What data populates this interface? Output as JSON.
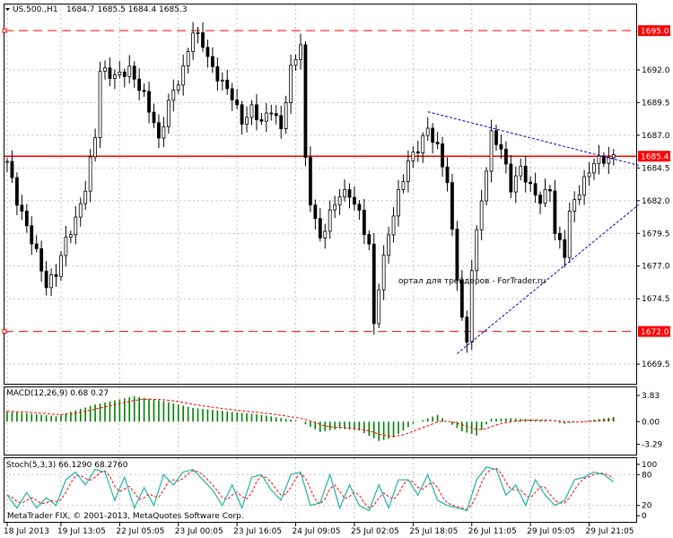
{
  "header": {
    "symbol": "US.500.,H1",
    "ohlc": "1684.7 1685.5 1684.4 1685.3"
  },
  "watermark": "ортал для трейдеров - ForTrader.ru",
  "copyright": "MetaTrader FIX, © 2001-2013, MetaQuotes Software Corp.",
  "colors": {
    "background": "#ffffff",
    "candle": "#000000",
    "grid": "#c0c0c0",
    "red_line": "#ff0000",
    "trend_line": "#0000c8",
    "macd_hist": "#008000",
    "signal": "#ff0000",
    "stoch_main": "#20b2aa",
    "stoch_signal": "#ff0000",
    "price_tag": "#ff0000"
  },
  "chart_data": [
    {
      "type": "candlestick",
      "panel": "main",
      "title": "US.500.,H1",
      "yaxis_ticks": [
        "1695.0",
        "1692.0",
        "1689.5",
        "1687.0",
        "1685.4",
        "1684.5",
        "1682.0",
        "1679.5",
        "1677.0",
        "1674.5",
        "1672.0",
        "1669.5"
      ],
      "ylim": [
        1668.0,
        1697.0
      ],
      "x_tick_labels": [
        "18 Jul 2013",
        "19 Jul 13:05",
        "22 Jul 05:05",
        "23 Jul 00:05",
        "23 Jul 16:05",
        "24 Jul 09:05",
        "25 Jul 02:05",
        "25 Jul 18:05",
        "26 Jul 11:05",
        "29 Jul 05:05",
        "29 Jul 21:05"
      ],
      "horizontal_lines": [
        {
          "price": 1695.0,
          "label": "1695.0",
          "style": "dashed",
          "color": "#ff0000"
        },
        {
          "price": 1685.4,
          "label": "1685.4",
          "style": "solid",
          "color": "#ff0000"
        },
        {
          "price": 1672.0,
          "label": "1672.0",
          "style": "dashed",
          "color": "#ff0000"
        }
      ],
      "trend_lines": [
        {
          "from": [
            86,
            1688.8
          ],
          "to": [
            124,
            1684.7
          ],
          "style": "dotted"
        },
        {
          "from": [
            92,
            1670.3
          ],
          "to": [
            124,
            1681.7
          ],
          "style": "dotted"
        }
      ],
      "close_anchors": [
        [
          0,
          1685.0
        ],
        [
          2,
          1682.0
        ],
        [
          4,
          1680.0
        ],
        [
          6,
          1678.0
        ],
        [
          8,
          1675.5
        ],
        [
          10,
          1676.5
        ],
        [
          12,
          1679.0
        ],
        [
          14,
          1680.5
        ],
        [
          16,
          1683.0
        ],
        [
          18,
          1687.0
        ],
        [
          19,
          1692.0
        ],
        [
          22,
          1691.5
        ],
        [
          25,
          1692.0
        ],
        [
          28,
          1690.0
        ],
        [
          30,
          1688.0
        ],
        [
          31,
          1686.5
        ],
        [
          33,
          1689.5
        ],
        [
          36,
          1692.0
        ],
        [
          38,
          1695.0
        ],
        [
          40,
          1694.0
        ],
        [
          42,
          1692.0
        ],
        [
          44,
          1691.0
        ],
        [
          46,
          1690.0
        ],
        [
          48,
          1688.0
        ],
        [
          50,
          1689.0
        ],
        [
          52,
          1688.0
        ],
        [
          54,
          1689.0
        ],
        [
          56,
          1687.5
        ],
        [
          58,
          1692.0
        ],
        [
          60,
          1694.0
        ],
        [
          61,
          1685.0
        ],
        [
          62,
          1682.0
        ],
        [
          64,
          1679.0
        ],
        [
          66,
          1681.0
        ],
        [
          68,
          1682.5
        ],
        [
          70,
          1682.5
        ],
        [
          72,
          1681.0
        ],
        [
          74,
          1678.5
        ],
        [
          75,
          1672.5
        ],
        [
          76,
          1675.5
        ],
        [
          78,
          1679.5
        ],
        [
          80,
          1682.5
        ],
        [
          82,
          1685.0
        ],
        [
          84,
          1686.0
        ],
        [
          86,
          1687.5
        ],
        [
          88,
          1686.0
        ],
        [
          90,
          1683.5
        ],
        [
          91,
          1679.5
        ],
        [
          93,
          1673.0
        ],
        [
          94,
          1671.0
        ],
        [
          95,
          1677.0
        ],
        [
          97,
          1682.0
        ],
        [
          99,
          1687.0
        ],
        [
          101,
          1686.0
        ],
        [
          103,
          1683.0
        ],
        [
          105,
          1684.5
        ],
        [
          107,
          1683.0
        ],
        [
          109,
          1682.0
        ],
        [
          111,
          1683.0
        ],
        [
          112,
          1679.5
        ],
        [
          114,
          1678.0
        ],
        [
          115,
          1681.0
        ],
        [
          116,
          1682.0
        ],
        [
          118,
          1683.5
        ],
        [
          120,
          1685.0
        ],
        [
          124,
          1685.3
        ]
      ],
      "candle_count": 125
    },
    {
      "type": "histogram",
      "panel": "macd",
      "title": "MACD(12,26,9) 0.68 0.27",
      "yaxis_ticks": [
        "3.83",
        "0.00",
        "-3.29"
      ],
      "ylim": [
        -4.8,
        5.0
      ],
      "series": [
        {
          "name": "MACD",
          "style": "histogram"
        },
        {
          "name": "Signal",
          "style": "dashed"
        }
      ],
      "anchors": [
        [
          0,
          1.5
        ],
        [
          10,
          0.8
        ],
        [
          18,
          2.5
        ],
        [
          26,
          3.7
        ],
        [
          32,
          3.0
        ],
        [
          38,
          2.0
        ],
        [
          45,
          1.5
        ],
        [
          52,
          1.0
        ],
        [
          58,
          0.3
        ],
        [
          60,
          0.0
        ],
        [
          64,
          -1.5
        ],
        [
          68,
          -1.0
        ],
        [
          72,
          -1.3
        ],
        [
          76,
          -2.8
        ],
        [
          79,
          -2.3
        ],
        [
          83,
          -0.3
        ],
        [
          88,
          1.0
        ],
        [
          93,
          -1.4
        ],
        [
          96,
          -2.0
        ],
        [
          99,
          0.4
        ],
        [
          103,
          0.5
        ],
        [
          110,
          0.2
        ],
        [
          114,
          -0.3
        ],
        [
          118,
          0.1
        ],
        [
          124,
          0.68
        ]
      ]
    },
    {
      "type": "line",
      "panel": "stochastic",
      "title": "Stoch(5,3,3) 66.1290 68.2760",
      "yaxis_ticks": [
        "100",
        "80",
        "20",
        "0"
      ],
      "ylim": [
        0,
        100
      ],
      "series": [
        {
          "name": "%K",
          "style": "solid"
        },
        {
          "name": "%D",
          "style": "dashed"
        }
      ],
      "anchors": [
        [
          0,
          40
        ],
        [
          2,
          15
        ],
        [
          4,
          45
        ],
        [
          6,
          15
        ],
        [
          8,
          35
        ],
        [
          10,
          20
        ],
        [
          12,
          70
        ],
        [
          14,
          85
        ],
        [
          16,
          60
        ],
        [
          18,
          90
        ],
        [
          20,
          85
        ],
        [
          22,
          30
        ],
        [
          24,
          75
        ],
        [
          26,
          15
        ],
        [
          28,
          55
        ],
        [
          30,
          20
        ],
        [
          32,
          80
        ],
        [
          34,
          60
        ],
        [
          36,
          85
        ],
        [
          38,
          90
        ],
        [
          40,
          70
        ],
        [
          42,
          50
        ],
        [
          44,
          20
        ],
        [
          46,
          60
        ],
        [
          48,
          15
        ],
        [
          50,
          75
        ],
        [
          52,
          80
        ],
        [
          54,
          50
        ],
        [
          56,
          30
        ],
        [
          58,
          80
        ],
        [
          60,
          85
        ],
        [
          62,
          20
        ],
        [
          64,
          25
        ],
        [
          66,
          80
        ],
        [
          68,
          15
        ],
        [
          70,
          60
        ],
        [
          72,
          20
        ],
        [
          74,
          10
        ],
        [
          76,
          60
        ],
        [
          78,
          15
        ],
        [
          80,
          70
        ],
        [
          82,
          70
        ],
        [
          84,
          40
        ],
        [
          86,
          80
        ],
        [
          88,
          30
        ],
        [
          90,
          20
        ],
        [
          92,
          15
        ],
        [
          94,
          10
        ],
        [
          96,
          70
        ],
        [
          98,
          95
        ],
        [
          100,
          90
        ],
        [
          102,
          40
        ],
        [
          104,
          60
        ],
        [
          106,
          20
        ],
        [
          108,
          70
        ],
        [
          110,
          40
        ],
        [
          112,
          20
        ],
        [
          114,
          30
        ],
        [
          116,
          70
        ],
        [
          118,
          75
        ],
        [
          120,
          85
        ],
        [
          122,
          80
        ],
        [
          124,
          66
        ]
      ]
    }
  ]
}
